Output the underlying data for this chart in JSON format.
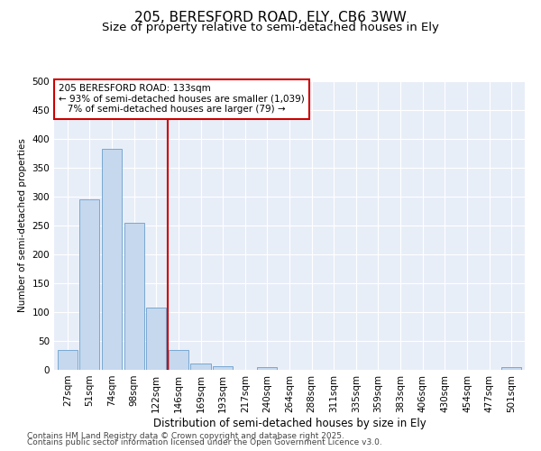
{
  "title1": "205, BERESFORD ROAD, ELY, CB6 3WW",
  "title2": "Size of property relative to semi-detached houses in Ely",
  "xlabel": "Distribution of semi-detached houses by size in Ely",
  "ylabel": "Number of semi-detached properties",
  "categories": [
    "27sqm",
    "51sqm",
    "74sqm",
    "98sqm",
    "122sqm",
    "146sqm",
    "169sqm",
    "193sqm",
    "217sqm",
    "240sqm",
    "264sqm",
    "288sqm",
    "311sqm",
    "335sqm",
    "359sqm",
    "383sqm",
    "406sqm",
    "430sqm",
    "454sqm",
    "477sqm",
    "501sqm"
  ],
  "values": [
    35,
    295,
    383,
    254,
    108,
    35,
    11,
    7,
    0,
    5,
    0,
    0,
    0,
    0,
    0,
    0,
    0,
    0,
    0,
    0,
    5
  ],
  "bar_color": "#c5d8ee",
  "bar_edge_color": "#6a9fcc",
  "vline_x": 4.5,
  "vline_color": "#cc0000",
  "annotation_text": "205 BERESFORD ROAD: 133sqm\n← 93% of semi-detached houses are smaller (1,039)\n   7% of semi-detached houses are larger (79) →",
  "annotation_box_color": "#cc0000",
  "ylim": [
    0,
    500
  ],
  "yticks": [
    0,
    50,
    100,
    150,
    200,
    250,
    300,
    350,
    400,
    450,
    500
  ],
  "background_color": "#e8eef8",
  "footer1": "Contains HM Land Registry data © Crown copyright and database right 2025.",
  "footer2": "Contains public sector information licensed under the Open Government Licence v3.0.",
  "title_fontsize": 11,
  "subtitle_fontsize": 9.5,
  "xlabel_fontsize": 8.5,
  "ylabel_fontsize": 7.5,
  "tick_fontsize": 7.5,
  "annotation_fontsize": 7.5,
  "footer_fontsize": 6.5
}
